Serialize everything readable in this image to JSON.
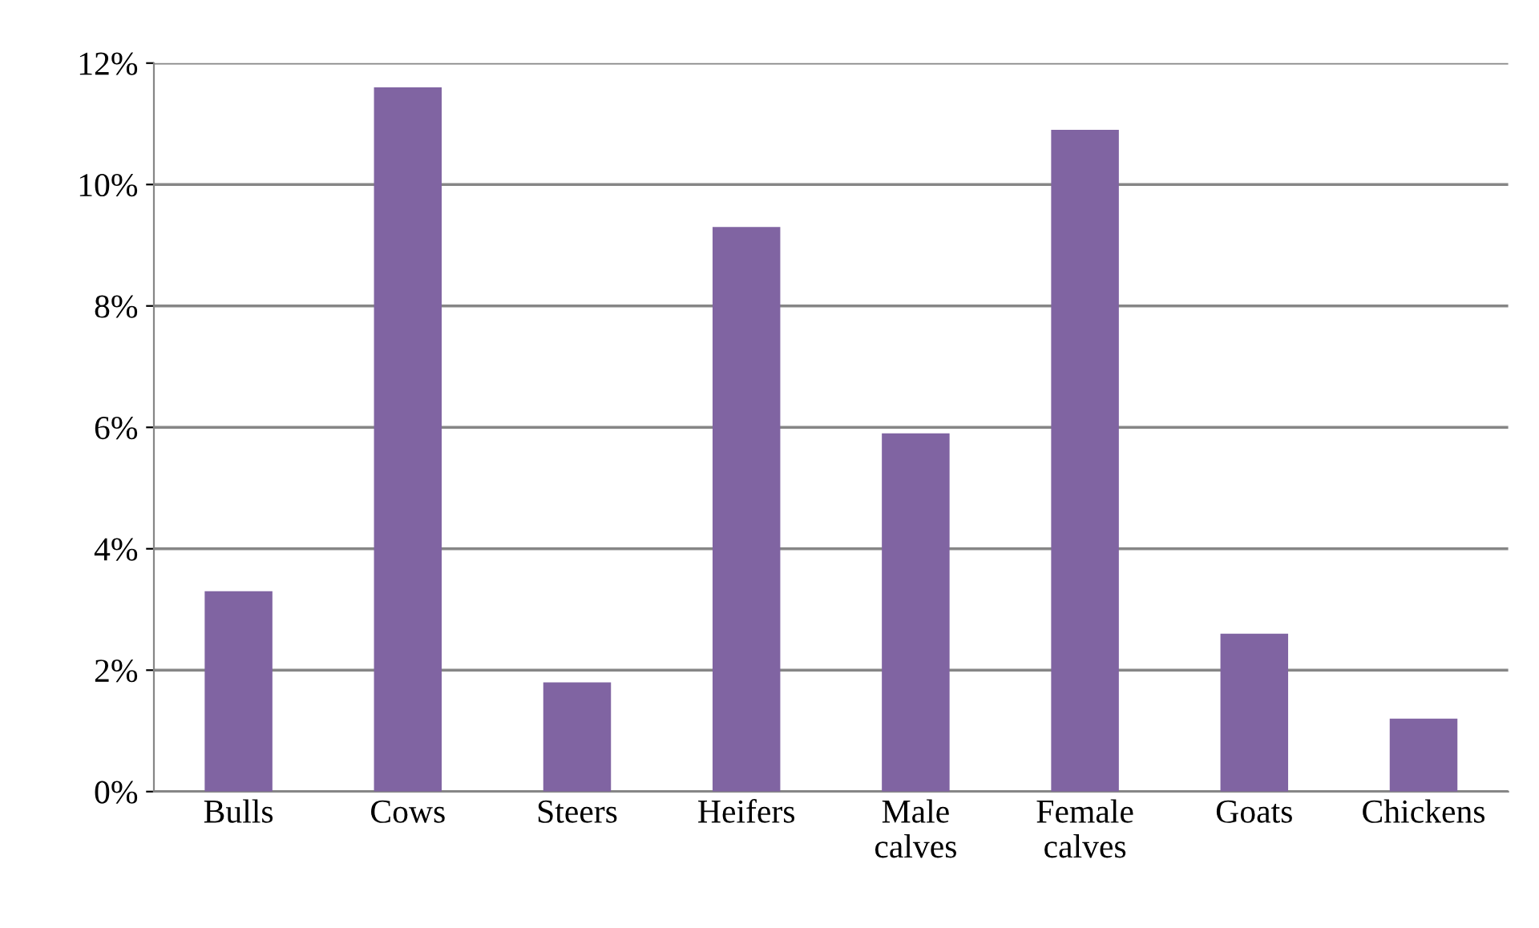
{
  "chart_data": {
    "type": "bar",
    "categories": [
      "Bulls",
      "Cows",
      "Steers",
      "Heifers",
      "Male\ncalves",
      "Female\ncalves",
      "Goats",
      "Chickens"
    ],
    "values": [
      3.3,
      11.6,
      1.8,
      9.3,
      5.9,
      10.9,
      2.6,
      1.2
    ],
    "color": "#8064a2",
    "ylim": [
      0,
      12
    ],
    "yticks": [
      {
        "value": 0,
        "label": "0%"
      },
      {
        "value": 2,
        "label": "2%"
      },
      {
        "value": 4,
        "label": "4%"
      },
      {
        "value": 6,
        "label": "6%"
      },
      {
        "value": 8,
        "label": "8%"
      },
      {
        "value": 10,
        "label": "10%"
      },
      {
        "value": 12,
        "label": "12%"
      }
    ],
    "grid": "y",
    "legend": false
  }
}
